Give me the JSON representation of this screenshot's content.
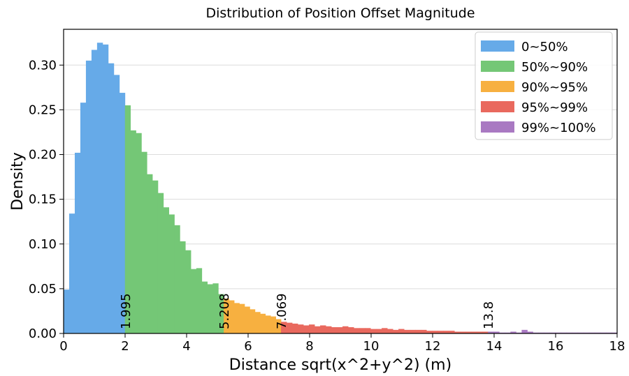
{
  "chart_data": {
    "type": "histogram",
    "title": "Distribution of Position Offset Magnitude",
    "xlabel": "Distance sqrt(x^2+y^2) (m)",
    "ylabel": "Density",
    "xlim": [
      0,
      18
    ],
    "ylim": [
      0,
      0.34
    ],
    "x_ticks": [
      "0",
      "2",
      "4",
      "6",
      "8",
      "10",
      "12",
      "14",
      "16",
      "18"
    ],
    "y_ticks": [
      "0.00",
      "0.05",
      "0.10",
      "0.15",
      "0.20",
      "0.25",
      "0.30"
    ],
    "grid": "horizontal",
    "legend_position": "top-right",
    "bin_width": 0.18,
    "series": [
      {
        "name": "0~50%",
        "color": "#66aae8",
        "x_start": 0,
        "x_end": 1.995,
        "values": [
          0.049,
          0.134,
          0.202,
          0.258,
          0.305,
          0.317,
          0.325,
          0.323,
          0.302,
          0.289,
          0.269
        ]
      },
      {
        "name": "50%~90%",
        "color": "#74c776",
        "x_start": 1.995,
        "x_end": 5.208,
        "values": [
          0.255,
          0.227,
          0.224,
          0.203,
          0.178,
          0.171,
          0.157,
          0.141,
          0.133,
          0.121,
          0.103,
          0.093,
          0.072,
          0.073,
          0.058,
          0.055,
          0.056,
          0.044
        ]
      },
      {
        "name": "90%~95%",
        "color": "#f7b040",
        "x_start": 5.208,
        "x_end": 7.069,
        "values": [
          0.039,
          0.037,
          0.034,
          0.033,
          0.03,
          0.027,
          0.024,
          0.022,
          0.02,
          0.019,
          0.016
        ]
      },
      {
        "name": "95%~99%",
        "color": "#e9695e",
        "x_start": 7.069,
        "x_end": 13.8,
        "values": [
          0.013,
          0.012,
          0.011,
          0.01,
          0.009,
          0.01,
          0.008,
          0.009,
          0.008,
          0.007,
          0.007,
          0.008,
          0.007,
          0.006,
          0.006,
          0.006,
          0.005,
          0.005,
          0.006,
          0.005,
          0.004,
          0.005,
          0.004,
          0.004,
          0.004,
          0.004,
          0.003,
          0.003,
          0.003,
          0.003,
          0.003,
          0.002,
          0.002,
          0.002,
          0.002,
          0.002,
          0.002
        ]
      },
      {
        "name": "99%~100%",
        "color": "#a979c2",
        "x_start": 13.8,
        "x_end": 18,
        "values": [
          0.002,
          0.002,
          0.001,
          0.001,
          0.002,
          0.001,
          0.004,
          0.002,
          0.001,
          0.001,
          0.001,
          0.001,
          0.001,
          0.001,
          0.001,
          0.001,
          0.001,
          0.001,
          0.001,
          0.001,
          0.001,
          0.001,
          0.001
        ]
      }
    ],
    "annotations": [
      {
        "x": 1.995,
        "text": "1.995"
      },
      {
        "x": 5.208,
        "text": "5.208"
      },
      {
        "x": 7.069,
        "text": "7.069"
      },
      {
        "x": 13.8,
        "text": "13.8"
      }
    ]
  }
}
